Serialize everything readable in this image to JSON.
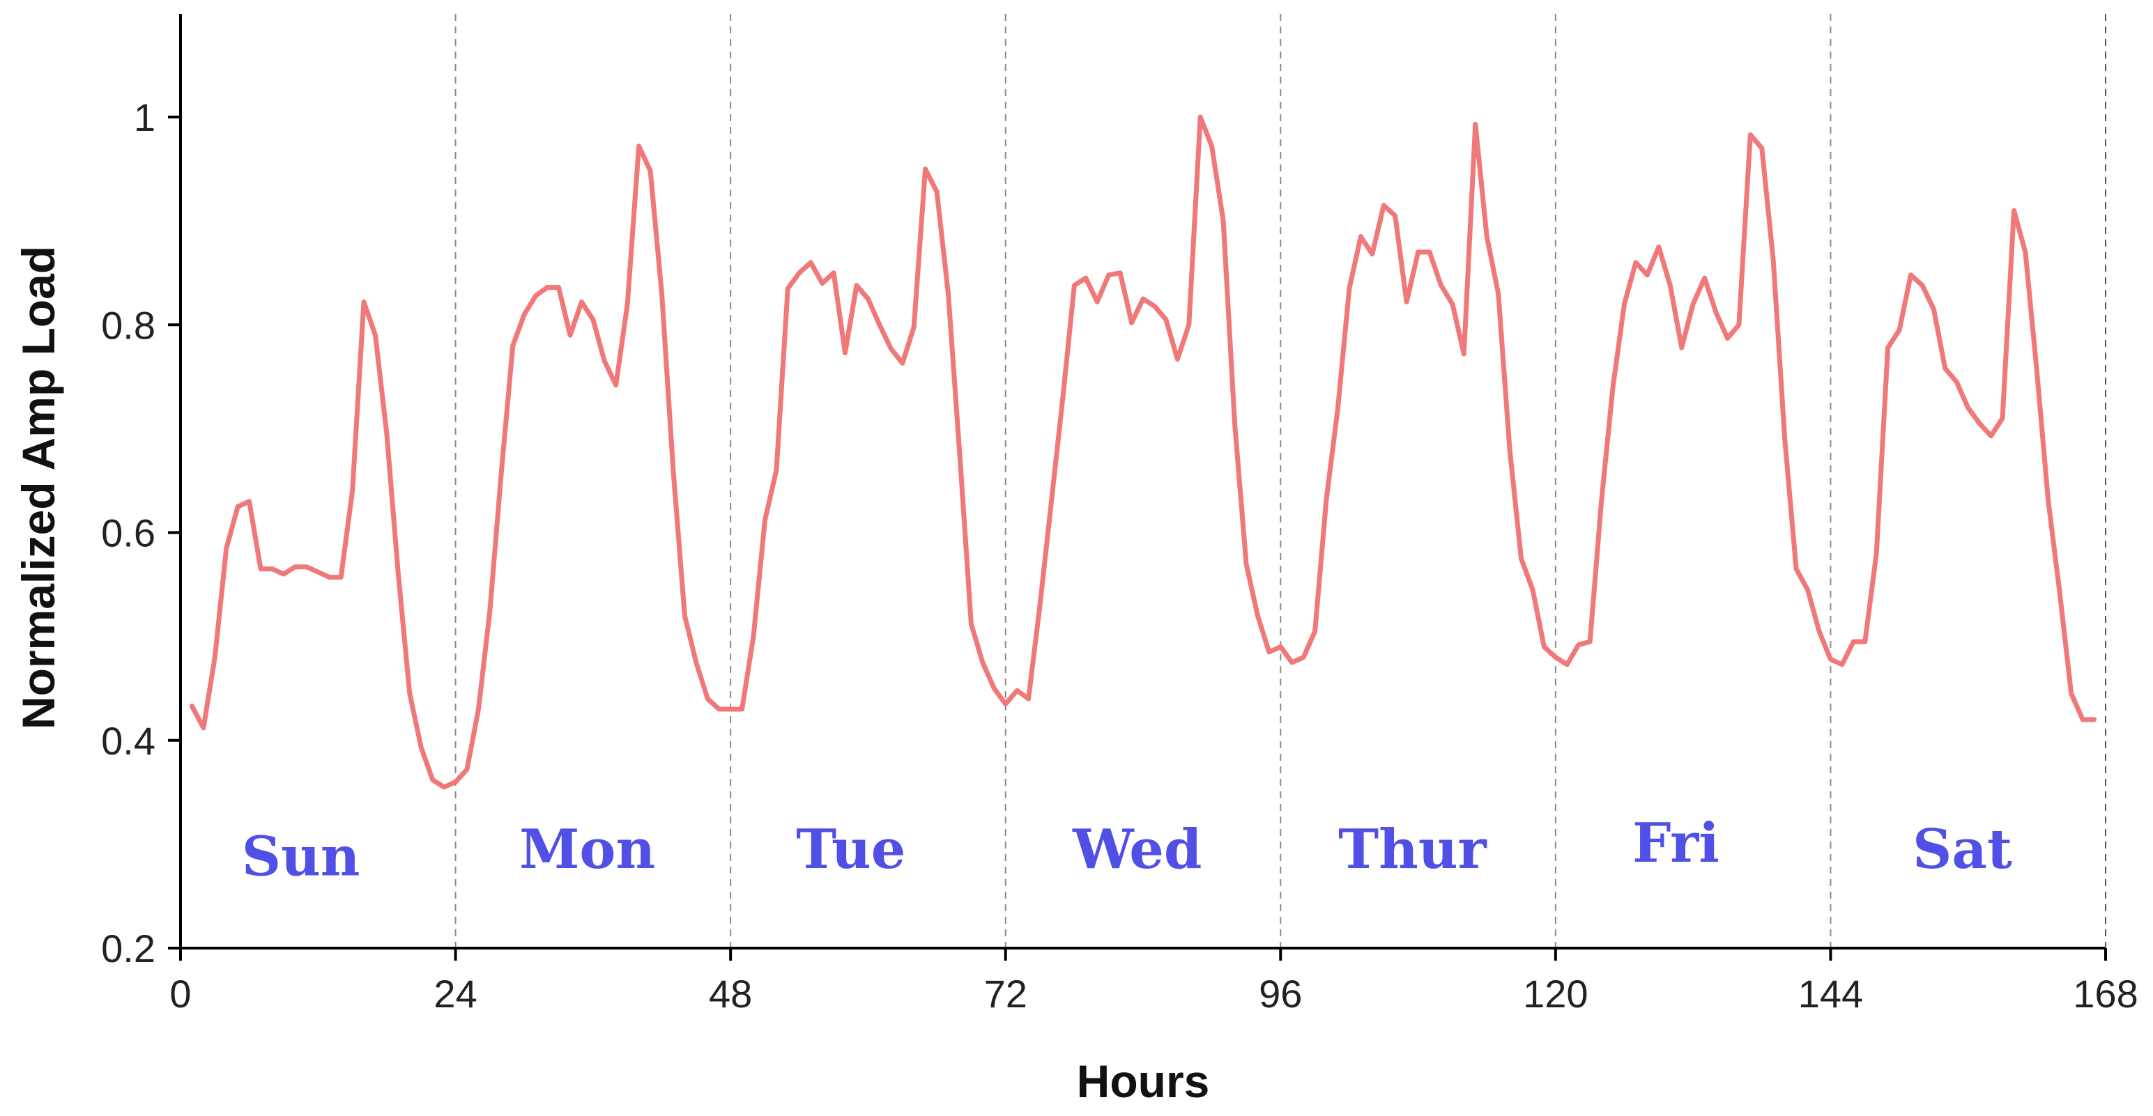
{
  "chart_data": {
    "type": "line",
    "xlabel": "Hours",
    "ylabel": "Normalized Amp Load",
    "xlim": [
      0,
      168
    ],
    "ylim": [
      0.2,
      1.1
    ],
    "xticks": [
      0,
      24,
      48,
      72,
      96,
      120,
      144,
      168
    ],
    "yticks": [
      0.2,
      0.4,
      0.6,
      0.8,
      1
    ],
    "ytick_labels": [
      "0.2",
      "0.4",
      "0.6",
      "0.8",
      "1"
    ],
    "grid": "vertical dashed lines at day boundaries",
    "line_color": "#f07878",
    "day_label_color": "#5050e6",
    "day_labels": [
      {
        "label": "Sun",
        "x": 10.5,
        "y": 0.27
      },
      {
        "label": "Mon",
        "x": 35.5,
        "y": 0.277
      },
      {
        "label": "Tue",
        "x": 58.5,
        "y": 0.277
      },
      {
        "label": "Wed",
        "x": 83.5,
        "y": 0.277
      },
      {
        "label": "Thur",
        "x": 107.5,
        "y": 0.277
      },
      {
        "label": "Fri",
        "x": 130.5,
        "y": 0.283
      },
      {
        "label": "Sat",
        "x": 155.5,
        "y": 0.277
      }
    ],
    "series": [
      {
        "x": [
          1,
          2,
          3,
          4,
          5,
          6,
          7,
          8,
          9,
          10,
          11,
          12,
          13,
          14,
          15,
          16,
          17,
          18,
          19,
          20,
          21,
          22,
          23,
          24,
          25,
          26,
          27,
          28,
          29,
          30,
          31,
          32,
          33,
          34,
          35,
          36,
          37,
          38,
          39,
          40,
          41,
          42,
          43,
          44,
          45,
          46,
          47,
          48,
          49,
          50,
          51,
          52,
          53,
          54,
          55,
          56,
          57,
          58,
          59,
          60,
          61,
          62,
          63,
          64,
          65,
          66,
          67,
          68,
          69,
          70,
          71,
          72,
          73,
          74,
          75,
          76,
          77,
          78,
          79,
          80,
          81,
          82,
          83,
          84,
          85,
          86,
          87,
          88,
          89,
          90,
          91,
          92,
          93,
          94,
          95,
          96,
          97,
          98,
          99,
          100,
          101,
          102,
          103,
          104,
          105,
          106,
          107,
          108,
          109,
          110,
          111,
          112,
          113,
          114,
          115,
          116,
          117,
          118,
          119,
          120,
          121,
          122,
          123,
          124,
          125,
          126,
          127,
          128,
          129,
          130,
          131,
          132,
          133,
          134,
          135,
          136,
          137,
          138,
          139,
          140,
          141,
          142,
          143,
          144,
          145,
          146,
          147,
          148,
          149,
          150,
          151,
          152,
          153,
          154,
          155,
          156,
          157,
          158,
          159,
          160,
          161,
          162,
          163,
          164,
          165,
          166,
          167
        ],
        "y": [
          0.433,
          0.412,
          0.48,
          0.585,
          0.625,
          0.63,
          0.565,
          0.565,
          0.56,
          0.567,
          0.567,
          0.562,
          0.557,
          0.557,
          0.64,
          0.822,
          0.79,
          0.695,
          0.56,
          0.445,
          0.393,
          0.362,
          0.355,
          0.36,
          0.372,
          0.43,
          0.525,
          0.658,
          0.78,
          0.81,
          0.828,
          0.836,
          0.836,
          0.79,
          0.822,
          0.805,
          0.765,
          0.742,
          0.82,
          0.972,
          0.948,
          0.83,
          0.66,
          0.52,
          0.475,
          0.44,
          0.43,
          0.43,
          0.43,
          0.5,
          0.612,
          0.66,
          0.835,
          0.85,
          0.86,
          0.84,
          0.85,
          0.773,
          0.838,
          0.825,
          0.8,
          0.777,
          0.763,
          0.798,
          0.95,
          0.928,
          0.83,
          0.675,
          0.512,
          0.475,
          0.45,
          0.435,
          0.448,
          0.44,
          0.53,
          0.63,
          0.73,
          0.838,
          0.845,
          0.822,
          0.848,
          0.85,
          0.802,
          0.825,
          0.818,
          0.805,
          0.767,
          0.8,
          1,
          0.972,
          0.9,
          0.705,
          0.57,
          0.52,
          0.485,
          0.49,
          0.475,
          0.48,
          0.505,
          0.632,
          0.72,
          0.835,
          0.885,
          0.868,
          0.915,
          0.905,
          0.822,
          0.87,
          0.87,
          0.838,
          0.82,
          0.772,
          0.993,
          0.885,
          0.83,
          0.68,
          0.575,
          0.545,
          0.49,
          0.48,
          0.473,
          0.492,
          0.495,
          0.63,
          0.74,
          0.82,
          0.86,
          0.848,
          0.875,
          0.838,
          0.778,
          0.82,
          0.845,
          0.812,
          0.787,
          0.8,
          0.983,
          0.97,
          0.862,
          0.69,
          0.565,
          0.545,
          0.505,
          0.478,
          0.473,
          0.495,
          0.495,
          0.58,
          0.778,
          0.795,
          0.848,
          0.838,
          0.815,
          0.758,
          0.745,
          0.72,
          0.705,
          0.693,
          0.71,
          0.91,
          0.87,
          0.755,
          0.63,
          0.542,
          0.445,
          0.42,
          0.42
        ]
      }
    ]
  }
}
